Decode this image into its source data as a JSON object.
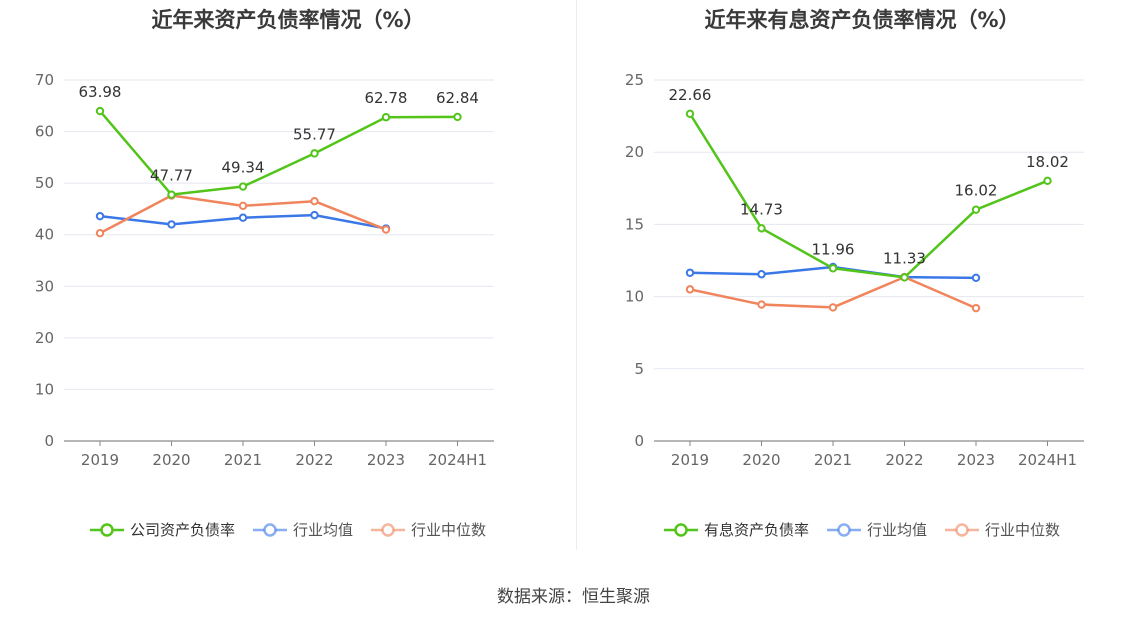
{
  "source": "数据来源：恒生聚源",
  "chart_data": [
    {
      "type": "line",
      "title": "近年来资产负债率情况（%）",
      "categories": [
        "2019",
        "2020",
        "2021",
        "2022",
        "2023",
        "2024H1"
      ],
      "ylim": [
        0,
        70
      ],
      "yticks": [
        0,
        10,
        20,
        30,
        40,
        50,
        60,
        70
      ],
      "series": [
        {
          "name": "公司资产负债率",
          "color": "#52c41a",
          "values": [
            63.98,
            47.77,
            49.34,
            55.77,
            62.78,
            62.84
          ],
          "labels": [
            "63.98",
            "47.77",
            "49.34",
            "55.77",
            "62.78",
            "62.84"
          ]
        },
        {
          "name": "行业均值",
          "color": "#3b78e7",
          "values": [
            43.6,
            42.0,
            43.3,
            43.8,
            41.2,
            null
          ]
        },
        {
          "name": "行业中位数",
          "color": "#f0845c",
          "values": [
            40.3,
            47.6,
            45.6,
            46.5,
            41.0,
            null
          ]
        }
      ]
    },
    {
      "type": "line",
      "title": "近年来有息资产负债率情况（%）",
      "categories": [
        "2019",
        "2020",
        "2021",
        "2022",
        "2023",
        "2024H1"
      ],
      "ylim": [
        0,
        25
      ],
      "yticks": [
        0,
        5,
        10,
        15,
        20,
        25
      ],
      "series": [
        {
          "name": "有息资产负债率",
          "color": "#52c41a",
          "values": [
            22.66,
            14.73,
            11.96,
            11.33,
            16.02,
            18.02
          ],
          "labels": [
            "22.66",
            "14.73",
            "11.96",
            "11.33",
            "16.02",
            "18.02"
          ]
        },
        {
          "name": "行业均值",
          "color": "#3b78e7",
          "values": [
            11.65,
            11.55,
            12.05,
            11.35,
            11.3,
            null
          ]
        },
        {
          "name": "行业中位数",
          "color": "#f0845c",
          "values": [
            10.5,
            9.45,
            9.25,
            11.35,
            9.2,
            null
          ]
        }
      ]
    }
  ]
}
